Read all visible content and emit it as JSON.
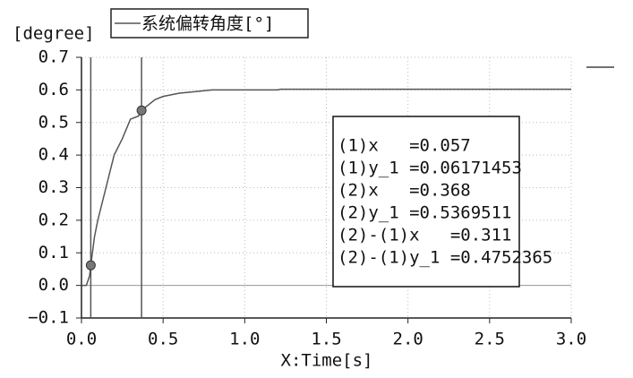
{
  "chart_data": {
    "type": "line",
    "y_label": "[degree]",
    "x_label": "X:Time[s]",
    "series": [
      {
        "name": "系统偏转角度[°]",
        "color": "#555555",
        "x": [
          0,
          0.03,
          0.05,
          0.057,
          0.08,
          0.1,
          0.15,
          0.2,
          0.25,
          0.3,
          0.35,
          0.368,
          0.4,
          0.45,
          0.5,
          0.6,
          0.7,
          0.8,
          1.0,
          1.2,
          1.22,
          1.5,
          2.0,
          2.5,
          3.0
        ],
        "values": [
          0,
          0,
          0.03,
          0.062,
          0.15,
          0.2,
          0.3,
          0.4,
          0.45,
          0.51,
          0.52,
          0.537,
          0.55,
          0.57,
          0.58,
          0.59,
          0.595,
          0.6,
          0.6,
          0.6,
          0.602,
          0.602,
          0.602,
          0.602,
          0.602
        ]
      }
    ],
    "cursors": [
      {
        "x": 0.057,
        "y": 0.06171453
      },
      {
        "x": 0.368,
        "y": 0.5369511
      }
    ],
    "annotations": [
      "(1)x   =0.057",
      "(1)y_1 =0.06171453",
      "(2)x   =0.368",
      "(2)y_1 =0.5369511",
      "(2)-(1)x   =0.311",
      "(2)-(1)y_1 =0.4752365"
    ],
    "xlim": [
      0,
      3.0
    ],
    "xticks": [
      {
        "value": 0,
        "label": "0.0"
      },
      0.5,
      {
        "value": 1,
        "label": "1.0"
      },
      1.5,
      {
        "value": 2,
        "label": "2.0"
      },
      2.5,
      {
        "value": 3,
        "label": "3.0"
      }
    ],
    "ylim": [
      -0.1,
      0.7
    ],
    "yticks": [
      {
        "value": -0.1,
        "label": "−0.1"
      },
      {
        "value": 0,
        "label": "0.0"
      },
      0.1,
      0.2,
      0.3,
      0.4,
      0.5,
      0.6,
      0.7
    ],
    "grid": true
  }
}
